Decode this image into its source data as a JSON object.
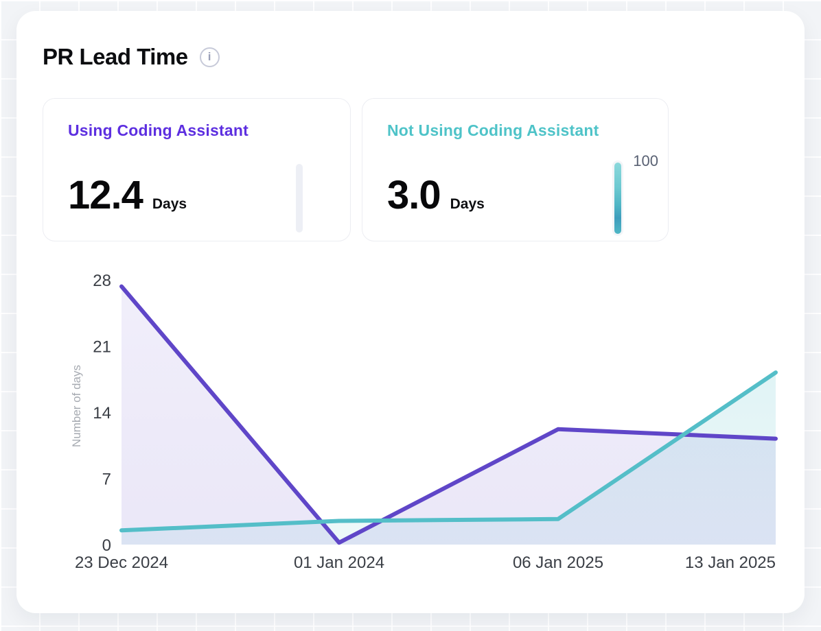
{
  "header": {
    "title": "PR Lead Time",
    "info_glyph": "i"
  },
  "stat_cards": [
    {
      "label": "Using Coding Assistant",
      "value": "12.4",
      "unit": "Days",
      "accent": "#5d2fe0",
      "gauge_label": ""
    },
    {
      "label": "Not Using Coding Assistant",
      "value": "3.0",
      "unit": "Days",
      "accent": "#4ec3c8",
      "gauge_label": "100"
    }
  ],
  "chart_data": {
    "type": "area",
    "title": "PR Lead Time",
    "categories": [
      "23 Dec 2024",
      "01 Jan 2024",
      "06 Jan 2025",
      "13 Jan 2025"
    ],
    "series": [
      {
        "name": "Using Coding Assistant",
        "color": "#5f46c8",
        "values": [
          27.3,
          0.2,
          12.2,
          11.2
        ]
      },
      {
        "name": "Not Using Coding Assistant",
        "color": "#54bec8",
        "values": [
          1.5,
          2.5,
          2.7,
          18.2
        ]
      }
    ],
    "xlabel": "",
    "ylabel": "Number of days",
    "ylim": [
      0,
      28
    ],
    "yticks": [
      0,
      7,
      14,
      21,
      28
    ],
    "grid": false,
    "legend": false
  }
}
